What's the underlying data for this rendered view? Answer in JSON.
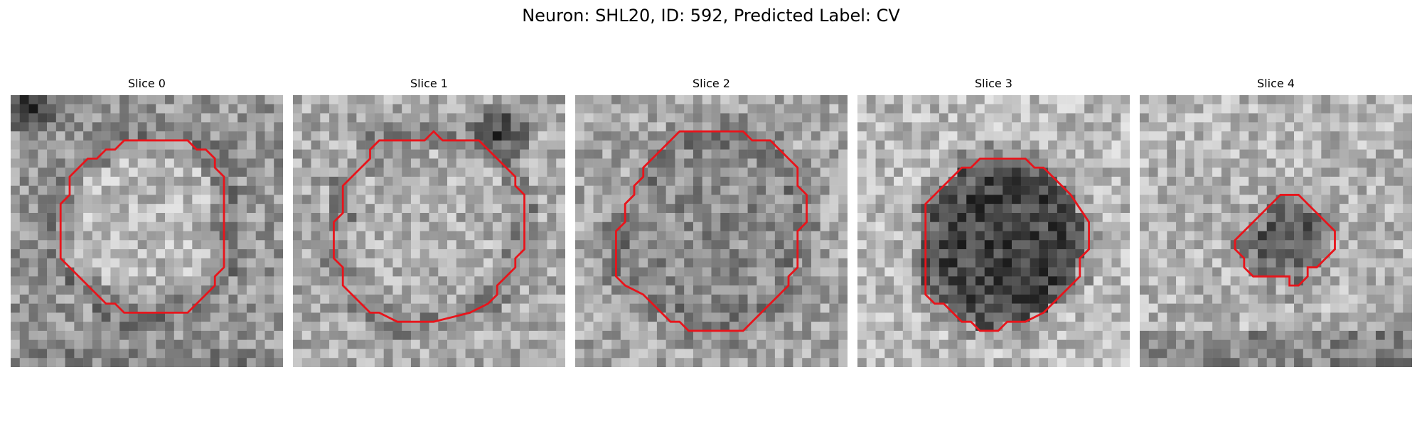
{
  "figure": {
    "title": "Neuron: SHL20, ID: 592, Predicted Label: CV",
    "colors": {
      "contour": "#e8141b",
      "background": "#ffffff"
    },
    "grid_size": 30,
    "panels": [
      {
        "title": "Slice 0",
        "image_description": "grayscale EM tile; lighter interior inside contour, darker ring and dark patch at top-left",
        "contour": [
          [
            12.5,
            5
          ],
          [
            19.5,
            5
          ],
          [
            20.5,
            6
          ],
          [
            21.5,
            6
          ],
          [
            22.5,
            7
          ],
          [
            22.5,
            8
          ],
          [
            23.5,
            9
          ],
          [
            23.5,
            19
          ],
          [
            22.5,
            20
          ],
          [
            22.5,
            21
          ],
          [
            21.5,
            22
          ],
          [
            20.5,
            23
          ],
          [
            19.5,
            24
          ],
          [
            18.5,
            24
          ],
          [
            17.5,
            24
          ],
          [
            12.5,
            24
          ],
          [
            11.5,
            23
          ],
          [
            10.5,
            23
          ],
          [
            9.5,
            22
          ],
          [
            8.5,
            21
          ],
          [
            7.5,
            20
          ],
          [
            6.5,
            19
          ],
          [
            5.5,
            18
          ],
          [
            5.5,
            12
          ],
          [
            6.5,
            11
          ],
          [
            6.5,
            10
          ],
          [
            6.5,
            9
          ],
          [
            7.5,
            8
          ],
          [
            8.5,
            7
          ],
          [
            9.5,
            7
          ],
          [
            10.5,
            6
          ],
          [
            11.5,
            6
          ]
        ]
      },
      {
        "title": "Slice 1",
        "image_description": "grayscale EM tile; light interior, dark membrane ring, dark patch upper-right",
        "contour": [
          [
            9.5,
            5
          ],
          [
            14.5,
            5
          ],
          [
            15.5,
            4
          ],
          [
            16.5,
            5
          ],
          [
            20.5,
            5
          ],
          [
            21.5,
            6
          ],
          [
            22.5,
            7
          ],
          [
            23.5,
            8
          ],
          [
            24.5,
            9
          ],
          [
            24.5,
            10
          ],
          [
            25.5,
            11
          ],
          [
            25.5,
            17
          ],
          [
            24.5,
            18
          ],
          [
            24.5,
            19
          ],
          [
            23.5,
            20
          ],
          [
            22.5,
            21
          ],
          [
            22.5,
            22
          ],
          [
            21.5,
            23
          ],
          [
            19.5,
            24
          ],
          [
            15.5,
            25
          ],
          [
            11.5,
            25
          ],
          [
            9.5,
            24
          ],
          [
            8.5,
            24
          ],
          [
            7.5,
            23
          ],
          [
            6.5,
            22
          ],
          [
            5.5,
            21
          ],
          [
            5.5,
            19
          ],
          [
            4.5,
            18
          ],
          [
            4.5,
            15
          ],
          [
            4.5,
            14
          ],
          [
            5.5,
            13
          ],
          [
            5.5,
            11
          ],
          [
            5.5,
            10
          ],
          [
            6.5,
            9
          ],
          [
            7.5,
            8
          ],
          [
            8.5,
            7
          ],
          [
            8.5,
            6
          ]
        ]
      },
      {
        "title": "Slice 2",
        "image_description": "grayscale EM tile; mottled interior with dark regions, contour nearly fills tile",
        "contour": [
          [
            11.5,
            4
          ],
          [
            18.5,
            4
          ],
          [
            19.5,
            5
          ],
          [
            21.5,
            5
          ],
          [
            22.5,
            6
          ],
          [
            23.5,
            7
          ],
          [
            24.5,
            8
          ],
          [
            24.5,
            10
          ],
          [
            25.5,
            11
          ],
          [
            25.5,
            14
          ],
          [
            24.5,
            15
          ],
          [
            24.5,
            17
          ],
          [
            24.5,
            19
          ],
          [
            23.5,
            20
          ],
          [
            23.5,
            21
          ],
          [
            22.5,
            22
          ],
          [
            21.5,
            23
          ],
          [
            20.5,
            24
          ],
          [
            19.5,
            25
          ],
          [
            18.5,
            26
          ],
          [
            12.5,
            26
          ],
          [
            11.5,
            25
          ],
          [
            10.5,
            25
          ],
          [
            9.5,
            24
          ],
          [
            8.5,
            23
          ],
          [
            7.5,
            22
          ],
          [
            5.5,
            21
          ],
          [
            4.5,
            20
          ],
          [
            4.5,
            16
          ],
          [
            4.5,
            15
          ],
          [
            5.5,
            14
          ],
          [
            5.5,
            13
          ],
          [
            5.5,
            12
          ],
          [
            6.5,
            11
          ],
          [
            6.5,
            10
          ],
          [
            7.5,
            9
          ],
          [
            7.5,
            8
          ],
          [
            8.5,
            7
          ],
          [
            9.5,
            6
          ],
          [
            10.5,
            5
          ]
        ]
      },
      {
        "title": "Slice 3",
        "image_description": "grayscale EM tile; dark round body inside contour on lighter noisy background",
        "contour": [
          [
            12.5,
            8
          ],
          [
            13.5,
            7
          ],
          [
            18.5,
            7
          ],
          [
            19.5,
            8
          ],
          [
            20.5,
            8
          ],
          [
            21.5,
            9
          ],
          [
            22.5,
            10
          ],
          [
            23.5,
            11
          ],
          [
            25.5,
            14
          ],
          [
            25.5,
            17
          ],
          [
            24.5,
            18
          ],
          [
            24.5,
            20
          ],
          [
            23.5,
            21
          ],
          [
            22.5,
            22
          ],
          [
            21.5,
            23
          ],
          [
            20.5,
            24
          ],
          [
            18.5,
            25
          ],
          [
            16.5,
            25
          ],
          [
            15.5,
            26
          ],
          [
            13.5,
            26
          ],
          [
            12.5,
            25
          ],
          [
            11.5,
            25
          ],
          [
            10.5,
            24
          ],
          [
            9.5,
            23
          ],
          [
            8.5,
            23
          ],
          [
            7.5,
            22
          ],
          [
            7.5,
            12
          ],
          [
            8.5,
            11
          ],
          [
            9.5,
            10
          ],
          [
            10.5,
            9
          ],
          [
            11.5,
            8
          ]
        ]
      },
      {
        "title": "Slice 4",
        "image_description": "grayscale EM tile; small dark region inside small contour, dark band along bottom",
        "contour": [
          [
            15.5,
            11
          ],
          [
            17.5,
            11
          ],
          [
            18.5,
            12
          ],
          [
            19.5,
            13
          ],
          [
            20.5,
            14
          ],
          [
            21.5,
            15
          ],
          [
            21.5,
            17
          ],
          [
            20.5,
            18
          ],
          [
            19.5,
            19
          ],
          [
            18.5,
            19
          ],
          [
            18.5,
            20
          ],
          [
            17.5,
            21
          ],
          [
            16.5,
            21
          ],
          [
            16.5,
            20
          ],
          [
            12.5,
            20
          ],
          [
            11.5,
            19
          ],
          [
            11.5,
            18
          ],
          [
            10.5,
            17
          ],
          [
            10.5,
            16
          ],
          [
            11.5,
            15
          ],
          [
            12.5,
            14
          ],
          [
            13.5,
            13
          ],
          [
            14.5,
            12
          ]
        ]
      }
    ]
  }
}
